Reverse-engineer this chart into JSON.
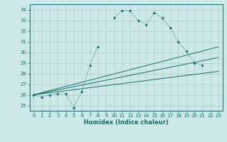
{
  "xlabel": "Humidex (Indice chaleur)",
  "background_color": "#cde8e8",
  "grid_color": "#b0c8c8",
  "line_color": "#1a6b6b",
  "xlim": [
    -0.5,
    23.5
  ],
  "ylim": [
    24.5,
    34.5
  ],
  "yticks": [
    25,
    26,
    27,
    28,
    29,
    30,
    31,
    32,
    33,
    34
  ],
  "xticks": [
    0,
    1,
    2,
    3,
    4,
    5,
    6,
    7,
    8,
    9,
    10,
    11,
    12,
    13,
    14,
    15,
    16,
    17,
    18,
    19,
    20,
    21,
    22,
    23
  ],
  "series1_x": [
    0,
    1,
    2,
    3,
    4,
    5,
    6,
    7,
    8,
    9,
    10,
    11,
    12,
    13,
    14,
    15,
    16,
    17,
    18,
    19,
    20,
    21,
    22,
    23
  ],
  "series1_y": [
    26.0,
    25.8,
    26.0,
    26.1,
    26.1,
    24.8,
    26.3,
    28.8,
    30.5,
    null,
    33.2,
    33.9,
    33.9,
    33.0,
    32.6,
    33.7,
    33.2,
    32.3,
    31.0,
    30.1,
    29.0,
    28.8,
    null,
    null
  ],
  "series2_x": [
    0,
    23
  ],
  "series2_y": [
    26.0,
    28.2
  ],
  "series3_x": [
    0,
    23
  ],
  "series3_y": [
    26.0,
    29.5
  ],
  "series4_x": [
    0,
    23
  ],
  "series4_y": [
    26.0,
    30.5
  ]
}
